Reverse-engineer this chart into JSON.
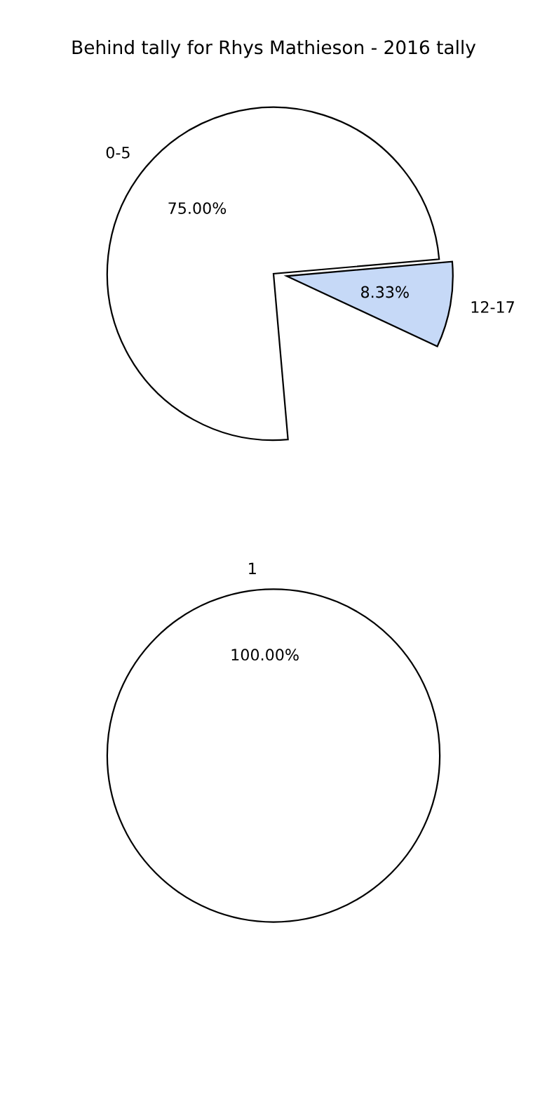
{
  "chart_data": [
    {
      "type": "pie",
      "title": "Behind tally for Rhys Mathieson - 2016 tally",
      "categories": [
        "0-5",
        "12-17"
      ],
      "values": [
        75,
        8.33
      ],
      "colors": [
        "#ffffff",
        "#c6d9f7"
      ],
      "value_labels": [
        "75.00%",
        "8.33%"
      ]
    },
    {
      "type": "pie",
      "categories": [
        "1"
      ],
      "values": [
        100
      ],
      "colors": [
        "#ffffff"
      ],
      "value_labels": [
        "100.00%"
      ]
    }
  ]
}
